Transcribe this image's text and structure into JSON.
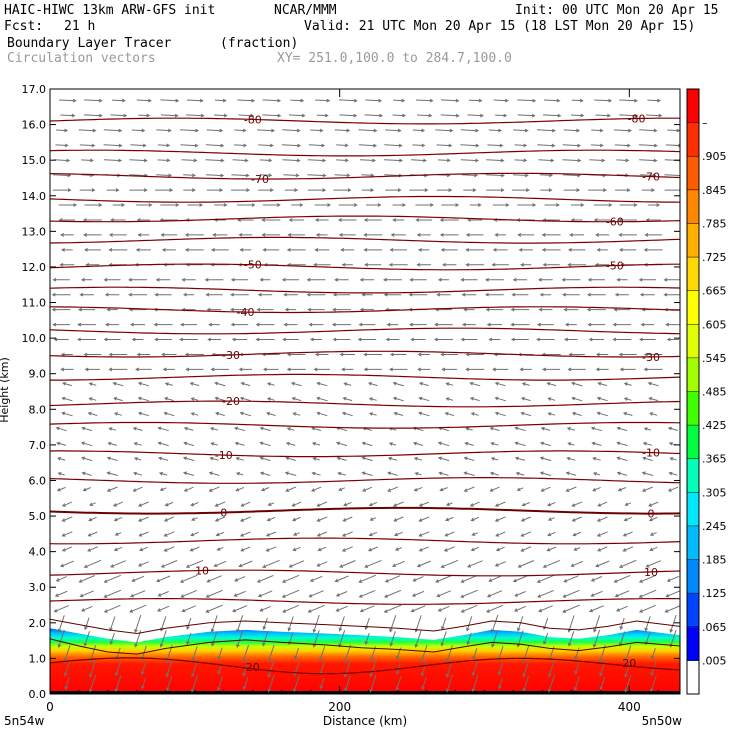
{
  "header": {
    "model": "HAIC-HIWC 13km ARW-GFS init",
    "org": "NCAR/MMM",
    "init": "Init: 00 UTC Mon 20 Apr 15",
    "fcst_label": "Fcst:",
    "fcst_value": "21 h",
    "valid": "Valid: 21 UTC Mon 20 Apr 15 (18 LST Mon 20 Apr 15)",
    "field": "Boundary Layer Tracer",
    "field_units": "(fraction)",
    "overlay": "Circulation vectors",
    "xy": "XY= 251.0,100.0 to 284.7,100.0"
  },
  "chart_data": {
    "type": "heatmap",
    "title": "",
    "xlabel": "Distance (km)",
    "ylabel": "Height (km)",
    "xlim": [
      0,
      435
    ],
    "ylim": [
      0,
      17
    ],
    "x_ticks": [
      {
        "value": 0,
        "label": "0"
      },
      {
        "value": 200,
        "label": "200"
      },
      {
        "value": 400,
        "label": "400"
      }
    ],
    "y_ticks": [
      {
        "value": 0,
        "label": "0.0"
      },
      {
        "value": 1,
        "label": "1.0"
      },
      {
        "value": 2,
        "label": "2.0"
      },
      {
        "value": 3,
        "label": "3.0"
      },
      {
        "value": 4,
        "label": "4.0"
      },
      {
        "value": 5,
        "label": "5.0"
      },
      {
        "value": 6,
        "label": "6.0"
      },
      {
        "value": 7,
        "label": "7.0"
      },
      {
        "value": 8,
        "label": "8.0"
      },
      {
        "value": 9,
        "label": "9.0"
      },
      {
        "value": 10,
        "label": "10.0"
      },
      {
        "value": 11,
        "label": "11.0"
      },
      {
        "value": 12,
        "label": "12.0"
      },
      {
        "value": 13,
        "label": "13.0"
      },
      {
        "value": 14,
        "label": "14.0"
      },
      {
        "value": 15,
        "label": "15.0"
      },
      {
        "value": 16,
        "label": "16.0"
      },
      {
        "value": 17,
        "label": "17.0"
      }
    ],
    "x_end_labels": {
      "left": "5n54w",
      "right": "5n50w"
    },
    "colorbar": {
      "labels": [
        ".005",
        ".065",
        ".125",
        ".185",
        ".245",
        ".305",
        ".365",
        ".425",
        ".485",
        ".545",
        ".605",
        ".665",
        ".725",
        ".785",
        ".845",
        ".905",
        "–"
      ],
      "colors": [
        "#ffffff",
        "#0000ff",
        "#0044ff",
        "#0088ff",
        "#00bbff",
        "#00e8ff",
        "#00ffb8",
        "#00ff40",
        "#40ff00",
        "#a0ff00",
        "#e0ff00",
        "#ffff00",
        "#ffd800",
        "#ffb000",
        "#ff8800",
        "#ff5c00",
        "#ff2e00",
        "#ff0000"
      ]
    },
    "pbl_top": [
      [
        0,
        1.85
      ],
      [
        20,
        1.7
      ],
      [
        40,
        1.55
      ],
      [
        60,
        1.45
      ],
      [
        80,
        1.6
      ],
      [
        110,
        1.75
      ],
      [
        135,
        1.8
      ],
      [
        160,
        1.75
      ],
      [
        190,
        1.7
      ],
      [
        215,
        1.65
      ],
      [
        240,
        1.6
      ],
      [
        265,
        1.52
      ],
      [
        285,
        1.65
      ],
      [
        305,
        1.8
      ],
      [
        325,
        1.75
      ],
      [
        345,
        1.6
      ],
      [
        365,
        1.55
      ],
      [
        385,
        1.65
      ],
      [
        405,
        1.8
      ],
      [
        435,
        1.65
      ]
    ],
    "shallow_top": [
      [
        0,
        1.55
      ],
      [
        20,
        1.35
      ],
      [
        40,
        1.18
      ],
      [
        60,
        1.12
      ],
      [
        80,
        1.28
      ],
      [
        110,
        1.45
      ],
      [
        135,
        1.52
      ],
      [
        160,
        1.45
      ],
      [
        190,
        1.38
      ],
      [
        215,
        1.3
      ],
      [
        240,
        1.25
      ],
      [
        265,
        1.18
      ],
      [
        285,
        1.32
      ],
      [
        305,
        1.45
      ],
      [
        325,
        1.4
      ],
      [
        345,
        1.28
      ],
      [
        365,
        1.22
      ],
      [
        385,
        1.32
      ],
      [
        405,
        1.45
      ],
      [
        435,
        1.35
      ]
    ],
    "isotherms": [
      {
        "value": -80,
        "label": "-80",
        "z": 16.1,
        "label_x": [
          140,
          405
        ]
      },
      {
        "value": -75,
        "label": "",
        "z": 15.2,
        "label_x": []
      },
      {
        "value": -70,
        "label": "-70",
        "z": 14.55,
        "label_x": [
          145,
          415
        ]
      },
      {
        "value": -65,
        "label": "",
        "z": 13.9,
        "label_x": []
      },
      {
        "value": -60,
        "label": "-60",
        "z": 13.35,
        "label_x": [
          390
        ]
      },
      {
        "value": -55,
        "label": "",
        "z": 12.75,
        "label_x": []
      },
      {
        "value": -50,
        "label": "-50",
        "z": 12.0,
        "label_x": [
          140,
          390
        ]
      },
      {
        "value": -45,
        "label": "",
        "z": 11.35,
        "label_x": []
      },
      {
        "value": -40,
        "label": "-40",
        "z": 10.8,
        "label_x": [
          135
        ]
      },
      {
        "value": -35,
        "label": "",
        "z": 10.2,
        "label_x": []
      },
      {
        "value": -30,
        "label": "-30",
        "z": 9.55,
        "label_x": [
          125,
          415
        ]
      },
      {
        "value": -25,
        "label": "",
        "z": 8.9,
        "label_x": []
      },
      {
        "value": -20,
        "label": "-20",
        "z": 8.15,
        "label_x": [
          125
        ]
      },
      {
        "value": -15,
        "label": "",
        "z": 7.55,
        "label_x": []
      },
      {
        "value": -10,
        "label": "-10",
        "z": 6.75,
        "label_x": [
          120,
          415
        ]
      },
      {
        "value": -5,
        "label": "",
        "z": 6.0,
        "label_x": []
      },
      {
        "value": 0,
        "label": "0",
        "z": 5.15,
        "label_x": [
          120,
          415
        ]
      },
      {
        "value": 5,
        "label": "",
        "z": 4.3,
        "label_x": []
      },
      {
        "value": 10,
        "label": "10",
        "z": 3.4,
        "label_x": [
          105,
          415
        ]
      },
      {
        "value": 15,
        "label": "",
        "z": 2.6,
        "label_x": []
      },
      {
        "value": 20,
        "label": "20",
        "z": 0.8,
        "label_x": [
          140,
          400
        ]
      }
    ]
  }
}
